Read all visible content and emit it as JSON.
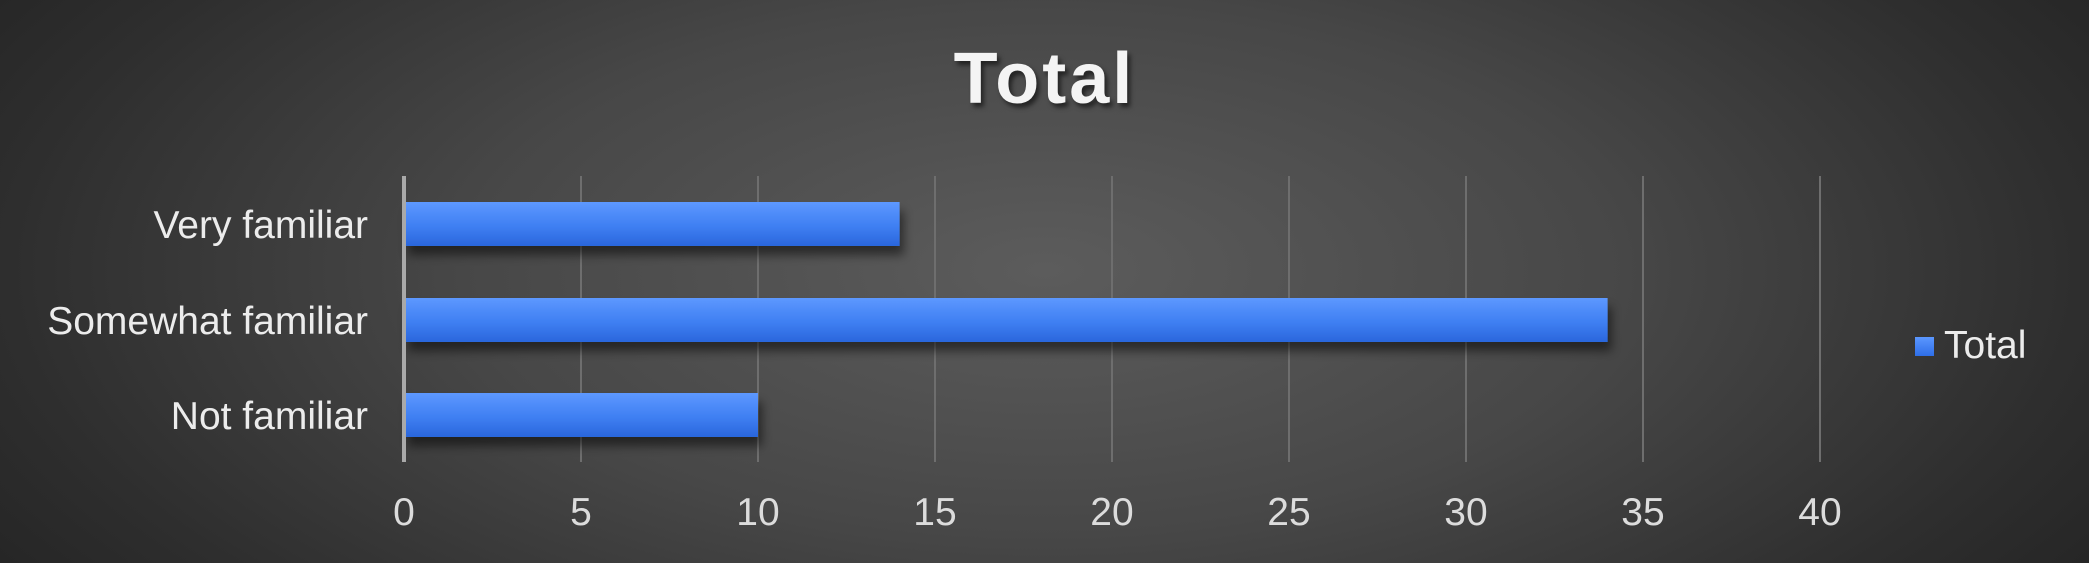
{
  "chart_data": {
    "type": "bar",
    "orientation": "horizontal",
    "title": "Total",
    "categories": [
      "Very familiar",
      "Somewhat familiar",
      "Not familiar"
    ],
    "series": [
      {
        "name": "Total",
        "values": [
          14,
          34,
          10
        ],
        "color": "#3d7ef5"
      }
    ],
    "xlim": [
      0,
      40
    ],
    "xticks": [
      0,
      5,
      10,
      15,
      20,
      25,
      30,
      35,
      40
    ],
    "grid": "vertical",
    "legend": "right"
  }
}
